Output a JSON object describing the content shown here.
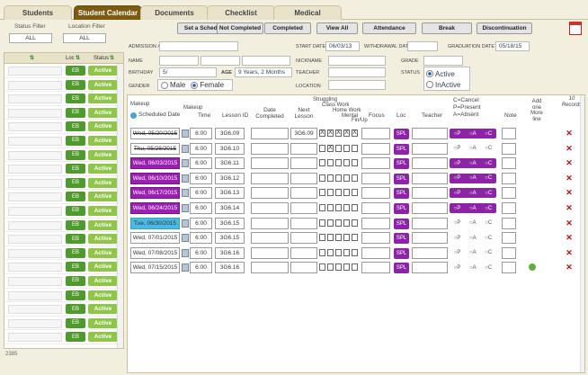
{
  "tabs": [
    {
      "label": "Students"
    },
    {
      "label": "Student Calendar"
    },
    {
      "label": "Documents"
    },
    {
      "label": "Checklist"
    },
    {
      "label": "Medical"
    }
  ],
  "filters": {
    "status_label": "Status Filter",
    "status_value": "ALL",
    "location_label": "Location Filter",
    "location_value": "ALL"
  },
  "left_list": {
    "headers": {
      "sort1": "⇅",
      "loc": "Loc",
      "sort2": "⇅",
      "status": "Status",
      "sort3": "⇅"
    },
    "rows": [
      {
        "loc": "EB",
        "status": "Active"
      },
      {
        "loc": "EB",
        "status": "Active"
      },
      {
        "loc": "EB",
        "status": "Active"
      },
      {
        "loc": "EB",
        "status": "Active"
      },
      {
        "loc": "EB",
        "status": "Active"
      },
      {
        "loc": "EB",
        "status": "Active"
      },
      {
        "loc": "EB",
        "status": "Active"
      },
      {
        "loc": "EB",
        "status": "Active"
      },
      {
        "loc": "EB",
        "status": "Active"
      },
      {
        "loc": "EB",
        "status": "Active"
      },
      {
        "loc": "EB",
        "status": "Active"
      },
      {
        "loc": "EB",
        "status": "Active"
      },
      {
        "loc": "EB",
        "status": "Active"
      },
      {
        "loc": "EB",
        "status": "Active"
      },
      {
        "loc": "EB",
        "status": "Active"
      },
      {
        "loc": "EB",
        "status": "Active"
      },
      {
        "loc": "EB",
        "status": "Active"
      },
      {
        "loc": "EB",
        "status": "Active"
      },
      {
        "loc": "EB",
        "status": "Active"
      },
      {
        "loc": "EB",
        "status": "Active"
      }
    ],
    "footer": "2385"
  },
  "toolbar": {
    "set_schedule": "Set a Schedule",
    "not_completed": "Not Completed",
    "completed": "Completed",
    "view_all": "View All",
    "attendance": "Attendance",
    "break": "Break",
    "discontinuation": "Discontinuation"
  },
  "info": {
    "admission_label": "ADMISSION #",
    "name_label": "NAME",
    "birthday_label": "BIRTHDAY",
    "birthday_value": "5/",
    "age_label": "AGE",
    "age_value": "9 Years, 2 Months",
    "gender_label": "GENDER",
    "male": "Male",
    "female": "Female",
    "start_date_label": "START DATE",
    "start_date_value": "06/03/13",
    "withdrawal_label": "WITHDRAWAL DATE",
    "graduation_label": "GRADUATION DATE",
    "graduation_value": "05/18/15",
    "nickname_label": "NICKNAME",
    "teacher_label": "TEACHER",
    "location_label": "LOCATION",
    "grade_label": "GRADE",
    "status_label": "STATUS",
    "active": "Active",
    "inactive": "InActive"
  },
  "grid": {
    "records": "10 Records",
    "headers": {
      "makeup": "Makeup",
      "scheduled_date": "Scheduled Date",
      "makeup2": "Makeup",
      "time": "Time",
      "lesson_id": "Lesson ID",
      "date_completed": "Date Completed",
      "next_lesson": "Next Lesson",
      "struggling": "Struggling",
      "class_work": "Class Work",
      "home_work": "Home Work",
      "mental": "Mental",
      "fin_up": "Fin/Up",
      "focus": "Focus",
      "loc": "Loc",
      "teacher": "Teacher",
      "legend1": "C=Cancel",
      "legend2": "P=Present",
      "legend3": "A=Absent",
      "note": "Note",
      "add_more": "Add one More line"
    },
    "rows": [
      {
        "date": "Wed, 05/20/2015",
        "time": "6:00",
        "lesson": "3G6.09",
        "next": "3G6.09",
        "checks": [
          "X",
          "X",
          "X",
          "X",
          "X"
        ],
        "loc": "SPL",
        "att": "purple",
        "struck": true
      },
      {
        "date": "Thu, 05/28/2015",
        "time": "6:00",
        "lesson": "3G6.10",
        "next": "",
        "checks": [
          "",
          "X",
          "",
          "",
          ""
        ],
        "loc": "SPL",
        "att": "plain",
        "struck": true
      },
      {
        "date": "Wed, 06/03/2015",
        "time": "6:00",
        "lesson": "3G6.11",
        "next": "",
        "checks": [
          "",
          "",
          "",
          "",
          ""
        ],
        "loc": "SPL",
        "att": "purple",
        "style": "purple"
      },
      {
        "date": "Wed, 06/10/2015",
        "time": "6:00",
        "lesson": "3G6.12",
        "next": "",
        "checks": [
          "",
          "",
          "",
          "",
          ""
        ],
        "loc": "SPL",
        "att": "purple",
        "style": "purple"
      },
      {
        "date": "Wed, 06/17/2015",
        "time": "6:00",
        "lesson": "3G6.13",
        "next": "",
        "checks": [
          "",
          "",
          "",
          "",
          ""
        ],
        "loc": "SPL",
        "att": "purple",
        "style": "purple"
      },
      {
        "date": "Wed, 06/24/2015",
        "time": "6:00",
        "lesson": "3G6.14",
        "next": "",
        "checks": [
          "",
          "",
          "",
          "",
          ""
        ],
        "loc": "SPL",
        "att": "purple",
        "style": "purple"
      },
      {
        "date": "Tue, 06/30/2015",
        "time": "6:00",
        "lesson": "3G6.15",
        "next": "",
        "checks": [
          "",
          "",
          "",
          "",
          ""
        ],
        "loc": "SPL",
        "att": "plain",
        "style": "blue"
      },
      {
        "date": "Wed, 07/01/2015",
        "time": "6:00",
        "lesson": "3G6.15",
        "next": "",
        "checks": [
          "",
          "",
          "",
          "",
          ""
        ],
        "loc": "SPL",
        "att": "plain"
      },
      {
        "date": "Wed, 07/08/2015",
        "time": "6:00",
        "lesson": "3G6.16",
        "next": "",
        "checks": [
          "",
          "",
          "",
          "",
          ""
        ],
        "loc": "SPL",
        "att": "plain"
      },
      {
        "date": "Wed, 07/15/2015",
        "time": "6:00",
        "lesson": "3G6.16",
        "next": "",
        "checks": [
          "",
          "",
          "",
          "",
          ""
        ],
        "loc": "SPL",
        "att": "plain"
      }
    ],
    "att_labels": {
      "p": "P",
      "a": "A",
      "c": "C"
    },
    "delete_glyph": "✕"
  }
}
